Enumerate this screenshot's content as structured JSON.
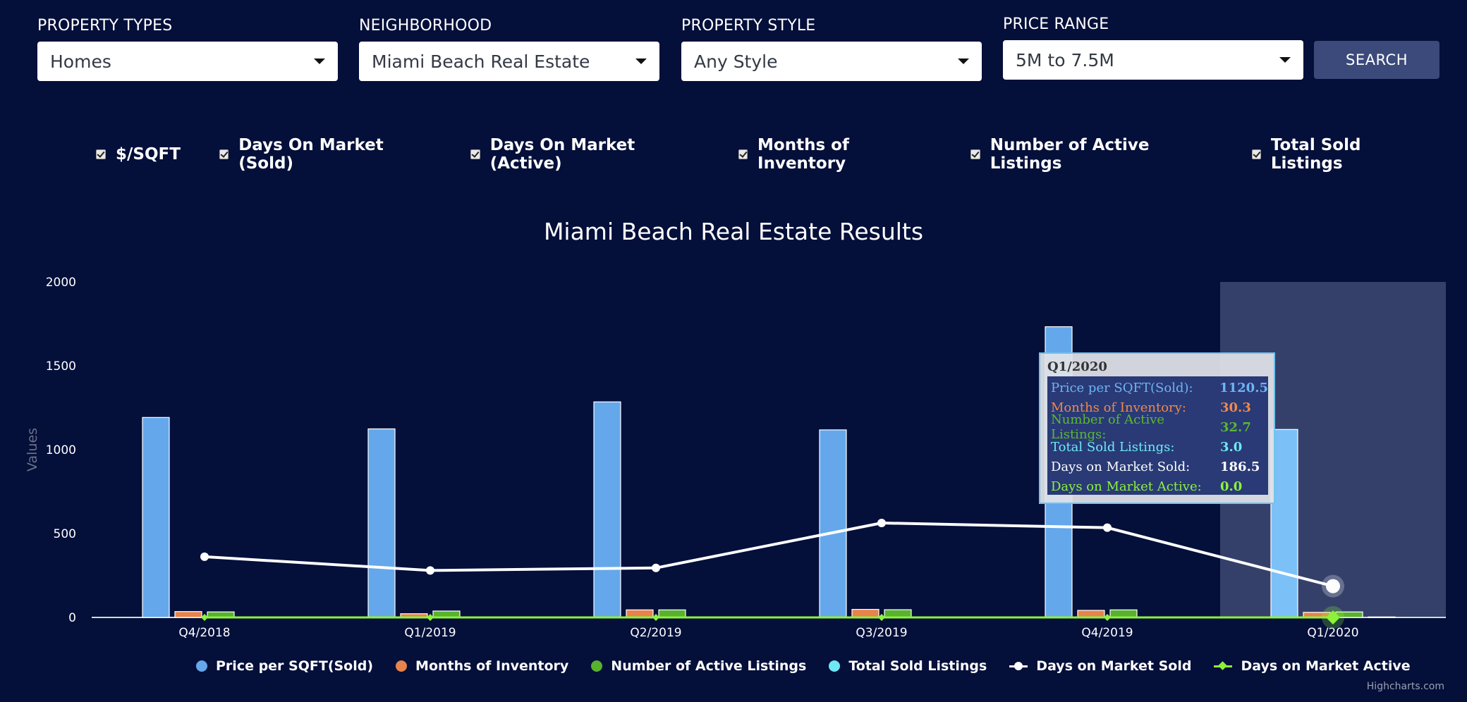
{
  "filters": [
    {
      "label": "PROPERTY TYPES",
      "value": "Homes"
    },
    {
      "label": "NEIGHBORHOOD",
      "value": "Miami Beach Real Estate"
    },
    {
      "label": "PROPERTY STYLE",
      "value": "Any Style"
    },
    {
      "label": "PRICE RANGE",
      "value": "5M to 7.5M"
    }
  ],
  "search_label": "SEARCH",
  "checkboxes": [
    {
      "label": "$/SQFT",
      "checked": true
    },
    {
      "label": "Days On Market (Sold)",
      "checked": true
    },
    {
      "label": "Days On Market (Active)",
      "checked": true
    },
    {
      "label": "Months of Inventory",
      "checked": true
    },
    {
      "label": "Number of Active Listings",
      "checked": true
    },
    {
      "label": "Total Sold Listings",
      "checked": true
    }
  ],
  "credits": "Highcharts.com",
  "tooltip": {
    "title": "Q1/2020",
    "rows": [
      {
        "name": "Price per SQFT(Sold):",
        "value": "1120.5",
        "color": "#6fb4f2"
      },
      {
        "name": "Months of Inventory:",
        "value": "30.3",
        "color": "#f0884a"
      },
      {
        "name": "Number of Active Listings:",
        "value": "32.7",
        "color": "#5cb82f"
      },
      {
        "name": "Total Sold Listings:",
        "value": "3.0",
        "color": "#6fe8f5"
      },
      {
        "name": "Days on Market Sold:",
        "value": "186.5",
        "color": "#ffffff"
      },
      {
        "name": "Days on Market Active:",
        "value": "0.0",
        "color": "#8cf23a"
      }
    ]
  },
  "chart_data": {
    "type": "bar",
    "title": "Miami Beach Real Estate Results",
    "ylabel": "Values",
    "ylim": [
      0,
      2000
    ],
    "yticks": [
      0,
      500,
      1000,
      1500,
      2000
    ],
    "categories": [
      "Q4/2018",
      "Q1/2019",
      "Q2/2019",
      "Q3/2019",
      "Q4/2019",
      "Q1/2020"
    ],
    "highlighted_category": "Q1/2020",
    "series": [
      {
        "name": "Price per SQFT(Sold)",
        "type": "column",
        "color": "#64a8eb",
        "values": [
          1192,
          1124,
          1285,
          1118,
          1733,
          1120.5
        ]
      },
      {
        "name": "Months of Inventory",
        "type": "column",
        "color": "#e8834b",
        "values": [
          35,
          22,
          45,
          48,
          42,
          30.3
        ]
      },
      {
        "name": "Number of Active Listings",
        "type": "column",
        "color": "#58b22e",
        "values": [
          33,
          38,
          45,
          46,
          45,
          32.7
        ]
      },
      {
        "name": "Total Sold Listings",
        "type": "column",
        "color": "#6fe8f5",
        "values": [
          0,
          0,
          0,
          0,
          0,
          3.0
        ]
      },
      {
        "name": "Days on Market Sold",
        "type": "line",
        "color": "#ffffff",
        "values": [
          362,
          280,
          295,
          563,
          535,
          186.5
        ]
      },
      {
        "name": "Days on Market Active",
        "type": "line",
        "color": "#8cf23a",
        "values": [
          0,
          0,
          0,
          0,
          0,
          0
        ]
      }
    ],
    "legend_position": "bottom"
  }
}
